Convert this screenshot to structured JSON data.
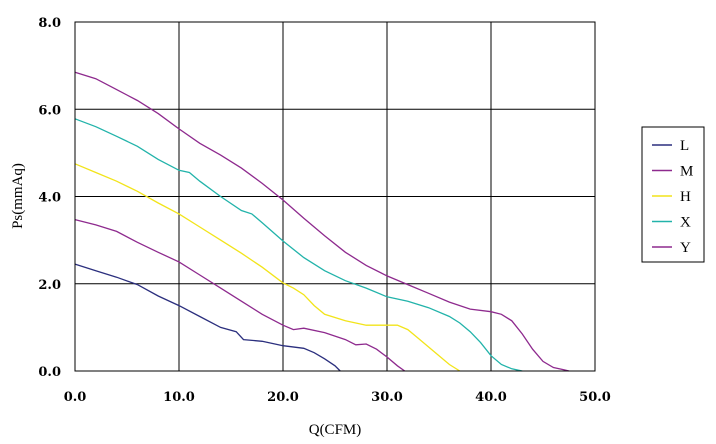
{
  "chart_data": {
    "type": "line",
    "title": "",
    "xlabel": "Q(CFM)",
    "ylabel": "Ps(mmAq)",
    "xlim": [
      0,
      50
    ],
    "ylim": [
      0,
      8
    ],
    "x_ticks": [
      "0.0",
      "10.0",
      "20.0",
      "30.0",
      "40.0",
      "50.0"
    ],
    "y_ticks": [
      "0.0",
      "2.0",
      "4.0",
      "6.0",
      "8.0"
    ],
    "grid": true,
    "legend_position": "right",
    "series": [
      {
        "name": "L",
        "color": "#2B2F7E",
        "points": [
          [
            0,
            2.45
          ],
          [
            2,
            2.3
          ],
          [
            4,
            2.15
          ],
          [
            6,
            1.98
          ],
          [
            8,
            1.72
          ],
          [
            10,
            1.5
          ],
          [
            12,
            1.25
          ],
          [
            14,
            1.0
          ],
          [
            15.5,
            0.9
          ],
          [
            16.2,
            0.72
          ],
          [
            18,
            0.68
          ],
          [
            20,
            0.58
          ],
          [
            22,
            0.52
          ],
          [
            23,
            0.42
          ],
          [
            24,
            0.28
          ],
          [
            25,
            0.12
          ],
          [
            25.5,
            0
          ]
        ]
      },
      {
        "name": "M",
        "color": "#8E2A8E",
        "points": [
          [
            0,
            3.47
          ],
          [
            2,
            3.35
          ],
          [
            4,
            3.2
          ],
          [
            6,
            2.95
          ],
          [
            8,
            2.72
          ],
          [
            10,
            2.5
          ],
          [
            12,
            2.2
          ],
          [
            14,
            1.9
          ],
          [
            16,
            1.6
          ],
          [
            18,
            1.3
          ],
          [
            20,
            1.05
          ],
          [
            21,
            0.95
          ],
          [
            22,
            0.98
          ],
          [
            24,
            0.88
          ],
          [
            26,
            0.72
          ],
          [
            27,
            0.6
          ],
          [
            28,
            0.62
          ],
          [
            29,
            0.5
          ],
          [
            30,
            0.32
          ],
          [
            31,
            0.12
          ],
          [
            31.7,
            0
          ]
        ]
      },
      {
        "name": "H",
        "color": "#F2E41A",
        "points": [
          [
            0,
            4.75
          ],
          [
            2,
            4.55
          ],
          [
            4,
            4.35
          ],
          [
            6,
            4.12
          ],
          [
            8,
            3.85
          ],
          [
            10,
            3.6
          ],
          [
            12,
            3.3
          ],
          [
            14,
            3.0
          ],
          [
            16,
            2.7
          ],
          [
            18,
            2.38
          ],
          [
            20,
            2.02
          ],
          [
            21,
            1.9
          ],
          [
            22,
            1.75
          ],
          [
            23,
            1.5
          ],
          [
            24,
            1.3
          ],
          [
            26,
            1.15
          ],
          [
            28,
            1.05
          ],
          [
            30,
            1.05
          ],
          [
            31,
            1.05
          ],
          [
            32,
            0.95
          ],
          [
            33,
            0.75
          ],
          [
            34,
            0.55
          ],
          [
            35,
            0.35
          ],
          [
            36,
            0.15
          ],
          [
            37,
            0
          ]
        ]
      },
      {
        "name": "X",
        "color": "#22B3AA",
        "points": [
          [
            0,
            5.78
          ],
          [
            2,
            5.6
          ],
          [
            4,
            5.38
          ],
          [
            6,
            5.15
          ],
          [
            8,
            4.85
          ],
          [
            10,
            4.6
          ],
          [
            11,
            4.55
          ],
          [
            12,
            4.35
          ],
          [
            14,
            4.0
          ],
          [
            16,
            3.68
          ],
          [
            17,
            3.6
          ],
          [
            18,
            3.4
          ],
          [
            20,
            2.98
          ],
          [
            22,
            2.6
          ],
          [
            24,
            2.3
          ],
          [
            26,
            2.07
          ],
          [
            28,
            1.9
          ],
          [
            30,
            1.7
          ],
          [
            32,
            1.6
          ],
          [
            34,
            1.45
          ],
          [
            36,
            1.25
          ],
          [
            37,
            1.1
          ],
          [
            38,
            0.9
          ],
          [
            39,
            0.65
          ],
          [
            40,
            0.35
          ],
          [
            41,
            0.15
          ],
          [
            42,
            0.05
          ],
          [
            43,
            0
          ]
        ]
      },
      {
        "name": "Y",
        "color": "#8E2A8E",
        "points": [
          [
            0,
            6.85
          ],
          [
            2,
            6.7
          ],
          [
            4,
            6.45
          ],
          [
            6,
            6.2
          ],
          [
            8,
            5.9
          ],
          [
            10,
            5.55
          ],
          [
            12,
            5.22
          ],
          [
            14,
            4.95
          ],
          [
            16,
            4.65
          ],
          [
            18,
            4.3
          ],
          [
            20,
            3.92
          ],
          [
            22,
            3.5
          ],
          [
            24,
            3.1
          ],
          [
            26,
            2.72
          ],
          [
            28,
            2.42
          ],
          [
            30,
            2.18
          ],
          [
            32,
            1.98
          ],
          [
            34,
            1.78
          ],
          [
            36,
            1.58
          ],
          [
            38,
            1.42
          ],
          [
            40,
            1.36
          ],
          [
            41,
            1.3
          ],
          [
            42,
            1.15
          ],
          [
            43,
            0.85
          ],
          [
            44,
            0.5
          ],
          [
            45,
            0.22
          ],
          [
            46,
            0.08
          ],
          [
            47,
            0.03
          ],
          [
            47.5,
            0
          ]
        ]
      }
    ]
  }
}
